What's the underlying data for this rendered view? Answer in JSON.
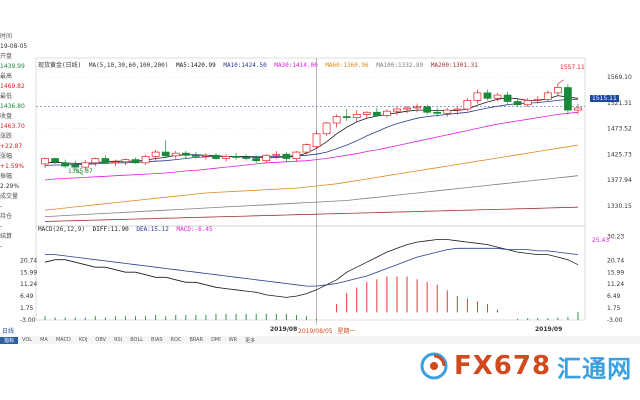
{
  "info_panel": {
    "time_label": "时间",
    "time_value": "19-08-05",
    "open_label": "开盘",
    "open_value": "1439.99",
    "high_label": "最高",
    "high_value": "1469.82",
    "low_label": "最低",
    "low_value": "1436.80",
    "close_label": "收盘",
    "close_value": "1463.70",
    "change_label": "涨跌",
    "change_value": "+22.87",
    "pct_label": "涨幅",
    "pct_value": "+1.59%",
    "amp_label": "振幅",
    "amp_value": "2.29%",
    "vol_label": "成交量",
    "vol_value": "-",
    "hold_label": "持仓",
    "hold_value": "-",
    "settle_label": "结算",
    "settle_value": "-"
  },
  "legend": {
    "name": "现货黄金(日线)",
    "ma_params": "MA(5,10,30,60,100,200)",
    "ma5": "MA5:1420.99",
    "ma10": "MA10:1424.50",
    "ma30": "MA30:1414.00",
    "ma60": "MA60:1360.96",
    "ma100": "MA100:1332.89",
    "ma200": "MA200:1301.31"
  },
  "macd_legend": {
    "params": "MACD(26,12,9)",
    "diff": "DIFF:11.90",
    "dea": "DEA:15.12",
    "macd": "MACD:-6.45"
  },
  "price_axis": [
    "1569.10",
    "1521.31",
    "1473.52",
    "1425.73",
    "1377.94",
    "1330.15"
  ],
  "macd_axis": [
    "30.23",
    "20.74",
    "15.99",
    "11.24",
    "6.49",
    "1.75",
    "-3.00"
  ],
  "macd_axis_left": [
    "20.74",
    "15.99",
    "11.24",
    "6.49",
    "1.75",
    "-3.00"
  ],
  "annotations": {
    "high_mark": "1557.11",
    "low_mark": "1385.87",
    "current_price": "1515.11",
    "macd_current": "25.43"
  },
  "time_axis": {
    "left_date": "2019/08",
    "cursor_date": "2019/08/05",
    "cursor_weekday": "星期一",
    "right_date": "2019/09"
  },
  "bottom": {
    "period_tab": "日线"
  },
  "indicator_tabs": [
    "指标",
    "VOL",
    "MA",
    "MACD",
    "KDJ",
    "OBV",
    "RSI",
    "BOLL",
    "BIAS",
    "ROC",
    "BRAR",
    "DMI",
    "WR",
    "更多"
  ],
  "watermark": {
    "brand": "FX678",
    "chinese": "汇通网"
  },
  "colors": {
    "up": "#e02020",
    "down": "#1a8a3a",
    "ma5": "#1a1a1a",
    "ma10": "#2b3a8c",
    "ma30": "#e020e0",
    "ma60": "#e08a20",
    "ma100": "#808080",
    "ma200": "#a03030",
    "diff": "#1a1a1a",
    "dea": "#2b3a8c"
  },
  "chart_data": {
    "type": "candlestick",
    "x_range": "2019-07 to 2019-09",
    "ylim": [
      1300,
      1590
    ],
    "candles": [
      {
        "o": 1408,
        "h": 1420,
        "l": 1400,
        "c": 1418
      },
      {
        "o": 1418,
        "h": 1420,
        "l": 1408,
        "c": 1412
      },
      {
        "o": 1410,
        "h": 1416,
        "l": 1400,
        "c": 1404
      },
      {
        "o": 1406,
        "h": 1414,
        "l": 1398,
        "c": 1402
      },
      {
        "o": 1402,
        "h": 1415,
        "l": 1396,
        "c": 1410
      },
      {
        "o": 1410,
        "h": 1420,
        "l": 1404,
        "c": 1418
      },
      {
        "o": 1418,
        "h": 1424,
        "l": 1408,
        "c": 1410
      },
      {
        "o": 1410,
        "h": 1416,
        "l": 1404,
        "c": 1412
      },
      {
        "o": 1412,
        "h": 1418,
        "l": 1406,
        "c": 1416
      },
      {
        "o": 1416,
        "h": 1420,
        "l": 1408,
        "c": 1410
      },
      {
        "o": 1410,
        "h": 1425,
        "l": 1406,
        "c": 1422
      },
      {
        "o": 1422,
        "h": 1434,
        "l": 1414,
        "c": 1430
      },
      {
        "o": 1430,
        "h": 1452,
        "l": 1420,
        "c": 1423
      },
      {
        "o": 1423,
        "h": 1432,
        "l": 1418,
        "c": 1428
      },
      {
        "o": 1428,
        "h": 1432,
        "l": 1418,
        "c": 1424
      },
      {
        "o": 1424,
        "h": 1430,
        "l": 1418,
        "c": 1422
      },
      {
        "o": 1422,
        "h": 1428,
        "l": 1416,
        "c": 1424
      },
      {
        "o": 1424,
        "h": 1428,
        "l": 1416,
        "c": 1418
      },
      {
        "o": 1418,
        "h": 1426,
        "l": 1412,
        "c": 1422
      },
      {
        "o": 1422,
        "h": 1428,
        "l": 1416,
        "c": 1420
      },
      {
        "o": 1420,
        "h": 1426,
        "l": 1414,
        "c": 1418
      },
      {
        "o": 1418,
        "h": 1424,
        "l": 1410,
        "c": 1414
      },
      {
        "o": 1414,
        "h": 1426,
        "l": 1410,
        "c": 1424
      },
      {
        "o": 1424,
        "h": 1432,
        "l": 1418,
        "c": 1426
      },
      {
        "o": 1426,
        "h": 1430,
        "l": 1412,
        "c": 1418
      },
      {
        "o": 1418,
        "h": 1432,
        "l": 1412,
        "c": 1430
      },
      {
        "o": 1430,
        "h": 1446,
        "l": 1426,
        "c": 1444
      },
      {
        "o": 1440,
        "h": 1470,
        "l": 1437,
        "c": 1464
      },
      {
        "o": 1464,
        "h": 1486,
        "l": 1460,
        "c": 1484
      },
      {
        "o": 1484,
        "h": 1500,
        "l": 1476,
        "c": 1496
      },
      {
        "o": 1496,
        "h": 1510,
        "l": 1488,
        "c": 1494
      },
      {
        "o": 1494,
        "h": 1508,
        "l": 1486,
        "c": 1500
      },
      {
        "o": 1500,
        "h": 1506,
        "l": 1492,
        "c": 1504
      },
      {
        "o": 1504,
        "h": 1512,
        "l": 1496,
        "c": 1498
      },
      {
        "o": 1498,
        "h": 1510,
        "l": 1494,
        "c": 1506
      },
      {
        "o": 1506,
        "h": 1514,
        "l": 1498,
        "c": 1510
      },
      {
        "o": 1510,
        "h": 1516,
        "l": 1502,
        "c": 1512
      },
      {
        "o": 1512,
        "h": 1520,
        "l": 1504,
        "c": 1514
      },
      {
        "o": 1514,
        "h": 1518,
        "l": 1500,
        "c": 1504
      },
      {
        "o": 1504,
        "h": 1512,
        "l": 1496,
        "c": 1502
      },
      {
        "o": 1502,
        "h": 1512,
        "l": 1496,
        "c": 1508
      },
      {
        "o": 1508,
        "h": 1514,
        "l": 1500,
        "c": 1510
      },
      {
        "o": 1510,
        "h": 1530,
        "l": 1506,
        "c": 1526
      },
      {
        "o": 1526,
        "h": 1546,
        "l": 1520,
        "c": 1540
      },
      {
        "o": 1540,
        "h": 1546,
        "l": 1526,
        "c": 1530
      },
      {
        "o": 1530,
        "h": 1540,
        "l": 1524,
        "c": 1536
      },
      {
        "o": 1536,
        "h": 1542,
        "l": 1520,
        "c": 1524
      },
      {
        "o": 1524,
        "h": 1530,
        "l": 1514,
        "c": 1518
      },
      {
        "o": 1518,
        "h": 1530,
        "l": 1514,
        "c": 1526
      },
      {
        "o": 1526,
        "h": 1534,
        "l": 1520,
        "c": 1528
      },
      {
        "o": 1528,
        "h": 1544,
        "l": 1524,
        "c": 1540
      },
      {
        "o": 1540,
        "h": 1557,
        "l": 1534,
        "c": 1550
      },
      {
        "o": 1550,
        "h": 1556,
        "l": 1500,
        "c": 1508
      },
      {
        "o": 1508,
        "h": 1520,
        "l": 1500,
        "c": 1512
      }
    ],
    "ma5": [
      1410,
      1411,
      1410,
      1409,
      1409,
      1410,
      1412,
      1413,
      1413,
      1413,
      1415,
      1418,
      1420,
      1424,
      1425,
      1425,
      1424,
      1423,
      1422,
      1421,
      1421,
      1420,
      1419,
      1420,
      1421,
      1422,
      1428,
      1437,
      1449,
      1464,
      1476,
      1486,
      1493,
      1497,
      1500,
      1503,
      1506,
      1508,
      1508,
      1507,
      1507,
      1507,
      1510,
      1517,
      1523,
      1528,
      1531,
      1529,
      1526,
      1526,
      1529,
      1535,
      1532,
      1530
    ],
    "ma10": [
      1405,
      1406,
      1406,
      1407,
      1407,
      1408,
      1409,
      1410,
      1410,
      1411,
      1412,
      1413,
      1414,
      1416,
      1418,
      1420,
      1421,
      1422,
      1422,
      1422,
      1422,
      1422,
      1422,
      1422,
      1422,
      1423,
      1424,
      1426,
      1430,
      1436,
      1443,
      1451,
      1460,
      1468,
      1476,
      1483,
      1488,
      1493,
      1496,
      1498,
      1500,
      1502,
      1504,
      1508,
      1512,
      1515,
      1518,
      1520,
      1521,
      1522,
      1524,
      1526,
      1528,
      1528
    ],
    "ma30": [
      1378,
      1380,
      1381,
      1382,
      1383,
      1384,
      1385,
      1386,
      1387,
      1388,
      1389,
      1390,
      1391,
      1393,
      1395,
      1396,
      1398,
      1400,
      1402,
      1404,
      1406,
      1408,
      1410,
      1411,
      1412,
      1413,
      1414,
      1416,
      1418,
      1421,
      1424,
      1427,
      1431,
      1434,
      1438,
      1442,
      1446,
      1450,
      1454,
      1458,
      1462,
      1466,
      1470,
      1474,
      1478,
      1482,
      1485,
      1488,
      1491,
      1494,
      1497,
      1500,
      1502,
      1504
    ],
    "ma60": [
      1322,
      1324,
      1326,
      1328,
      1330,
      1332,
      1334,
      1336,
      1338,
      1340,
      1342,
      1344,
      1346,
      1348,
      1350,
      1352,
      1354,
      1355,
      1356,
      1357,
      1358,
      1359,
      1360,
      1361,
      1362,
      1363,
      1365,
      1367,
      1369,
      1371,
      1374,
      1377,
      1380,
      1383,
      1386,
      1389,
      1392,
      1395,
      1398,
      1401,
      1404,
      1407,
      1410,
      1413,
      1416,
      1419,
      1422,
      1425,
      1428,
      1431,
      1434,
      1437,
      1440,
      1443
    ],
    "ma100": [
      1310,
      1311,
      1312,
      1313,
      1314,
      1315,
      1316,
      1317,
      1318,
      1319,
      1320,
      1321,
      1322,
      1323,
      1324,
      1325,
      1326,
      1327,
      1328,
      1329,
      1330,
      1331,
      1332,
      1333,
      1334,
      1335,
      1336,
      1337,
      1338,
      1339,
      1340,
      1342,
      1344,
      1346,
      1348,
      1350,
      1352,
      1354,
      1356,
      1358,
      1360,
      1362,
      1364,
      1366,
      1368,
      1370,
      1372,
      1374,
      1376,
      1378,
      1380,
      1382,
      1384,
      1386
    ],
    "ma200": [
      1301,
      1301.5,
      1302,
      1302.5,
      1303,
      1303.5,
      1304,
      1304.5,
      1305,
      1305.5,
      1306,
      1306.5,
      1307,
      1307.5,
      1308,
      1308.5,
      1309,
      1309.5,
      1310,
      1310.5,
      1311,
      1311.5,
      1312,
      1312.5,
      1313,
      1313.5,
      1314,
      1314.5,
      1315,
      1315.5,
      1316,
      1316.5,
      1317,
      1317.5,
      1318,
      1318.5,
      1319,
      1319.5,
      1320,
      1320.5,
      1321,
      1321.5,
      1322,
      1322.5,
      1323,
      1323.5,
      1324,
      1324.5,
      1325,
      1325.5,
      1326,
      1326.5,
      1327,
      1327.5
    ],
    "macd_ylim": [
      -3,
      32
    ],
    "diff": [
      20,
      21,
      21,
      20,
      19,
      18,
      18,
      17,
      16,
      16,
      15,
      14,
      14,
      13,
      12,
      12,
      11,
      10,
      9.5,
      9,
      8.5,
      8,
      7,
      6.5,
      6,
      6.5,
      7.5,
      9,
      11,
      13,
      16,
      18,
      20,
      22,
      24,
      25.5,
      27,
      28,
      28.5,
      29,
      29,
      28.5,
      28,
      27.5,
      27,
      26,
      25,
      24,
      23.5,
      23,
      23,
      22,
      21,
      19
    ],
    "dea": [
      23,
      23,
      22.5,
      22,
      21.5,
      21,
      20.5,
      20,
      19.5,
      19,
      18.5,
      18,
      17.5,
      17,
      16.5,
      16,
      15.5,
      15,
      14.5,
      14,
      13.5,
      13,
      12.5,
      12,
      11.5,
      11,
      10.5,
      10.5,
      11,
      11.5,
      12.5,
      13.5,
      14.5,
      16,
      17.5,
      19,
      20.5,
      22,
      23,
      24,
      25,
      25.5,
      25.5,
      25.5,
      25.5,
      25.5,
      25,
      25,
      25,
      24.5,
      24.5,
      24,
      23.5,
      23
    ],
    "macd_hist": [
      -3,
      -2,
      -2,
      -2,
      -2,
      -3,
      -2,
      -3,
      -3,
      -3,
      -3,
      -4,
      -3,
      -4,
      -4,
      -4,
      -4,
      -5,
      -5,
      -5,
      -5,
      -5,
      -5,
      -5,
      -5,
      -4,
      -3,
      -1,
      0,
      1.5,
      3.5,
      4.5,
      5.5,
      6,
      6.5,
      6.5,
      6.5,
      6,
      5.5,
      5,
      4,
      3,
      2.5,
      2,
      1.5,
      0.5,
      0,
      -1,
      -1.5,
      -1.5,
      -1.5,
      -2,
      -2.5,
      -6.45
    ]
  }
}
